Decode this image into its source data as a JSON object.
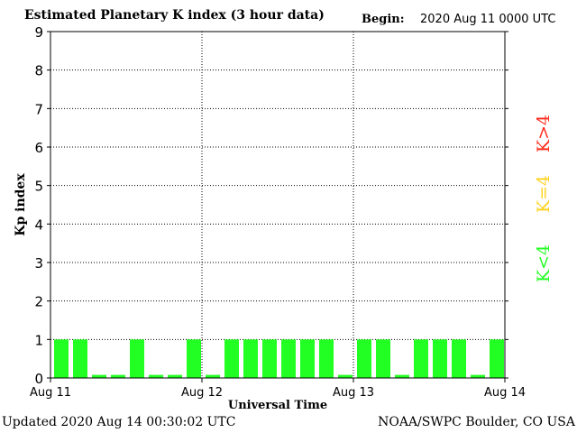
{
  "header": {
    "title": "Estimated Planetary K index (3 hour data)",
    "begin_label": "Begin:",
    "begin_value": "2020 Aug 11 0000 UTC"
  },
  "footer": {
    "updated": "Updated 2020 Aug 14 00:30:02 UTC",
    "source": "NOAA/SWPC Boulder, CO USA"
  },
  "legend": {
    "high": "K>4",
    "equal": "K=4",
    "low": "K<4"
  },
  "colors": {
    "low": "#22ff22",
    "equal": "#ffd21f",
    "high": "#ff2a1a",
    "axis": "#000000"
  },
  "chart_data": {
    "type": "bar",
    "title": "Estimated Planetary K index (3 hour data)",
    "xlabel": "Universal Time",
    "ylabel": "Kp index",
    "ylim": [
      0,
      9
    ],
    "yticks": [
      0,
      1,
      2,
      3,
      4,
      5,
      6,
      7,
      8,
      9
    ],
    "xticks": [
      "Aug 11",
      "Aug 12",
      "Aug 13",
      "Aug 14"
    ],
    "grid": true,
    "bars_per_day": 8,
    "values": [
      1,
      1,
      0,
      0,
      1,
      0,
      0,
      1,
      0,
      1,
      1,
      1,
      1,
      1,
      1,
      0,
      1,
      1,
      0,
      1,
      1,
      1,
      0,
      1
    ]
  }
}
